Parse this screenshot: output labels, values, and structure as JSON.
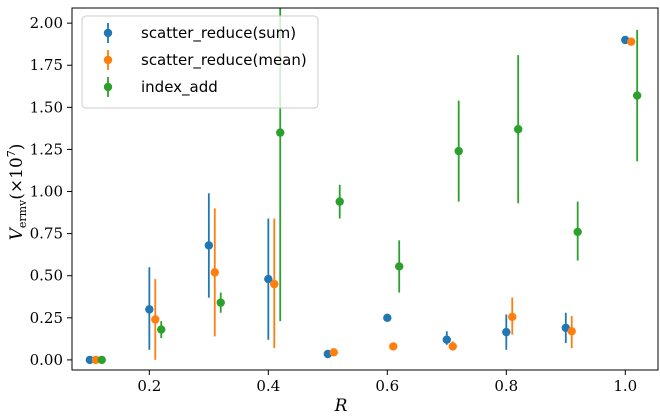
{
  "chart_data": {
    "type": "scatter",
    "xlabel": "R",
    "ylabel": {
      "main": "V",
      "sub": "ermv",
      "suffix": "(×10",
      "exp": "7",
      "close": ")"
    },
    "xlim": [
      0.07,
      1.055
    ],
    "ylim": [
      -0.06,
      2.09
    ],
    "x_ticks": [
      0.2,
      0.4,
      0.6,
      0.8,
      1.0
    ],
    "x_tick_labels": [
      "0.2",
      "0.4",
      "0.6",
      "0.8",
      "1.0"
    ],
    "y_ticks": [
      0.0,
      0.25,
      0.5,
      0.75,
      1.0,
      1.25,
      1.5,
      1.75,
      2.0
    ],
    "y_tick_labels": [
      "0.00",
      "0.25",
      "0.50",
      "0.75",
      "1.00",
      "1.25",
      "1.50",
      "1.75",
      "2.00"
    ],
    "grid": false,
    "legend_position": "top-left",
    "series": [
      {
        "name": "scatter_reduce(sum)",
        "color": "#1f77b4",
        "x": [
          0.1,
          0.2,
          0.3,
          0.4,
          0.5,
          0.6,
          0.7,
          0.8,
          0.9,
          1.0
        ],
        "y": [
          0.0,
          0.3,
          0.68,
          0.48,
          0.035,
          0.25,
          0.12,
          0.165,
          0.19,
          1.9
        ],
        "err_low": [
          0.0,
          0.06,
          0.37,
          0.12,
          0.03,
          0.25,
          0.09,
          0.06,
          0.1,
          1.9
        ],
        "err_high": [
          0.0,
          0.55,
          0.99,
          0.84,
          0.04,
          0.25,
          0.17,
          0.27,
          0.28,
          1.9
        ]
      },
      {
        "name": "scatter_reduce(mean)",
        "color": "#ff7f0e",
        "x": [
          0.11,
          0.21,
          0.31,
          0.41,
          0.51,
          0.61,
          0.71,
          0.81,
          0.91,
          1.01
        ],
        "y": [
          0.0,
          0.24,
          0.52,
          0.45,
          0.045,
          0.08,
          0.08,
          0.255,
          0.17,
          1.89
        ],
        "err_low": [
          0.0,
          0.0,
          0.14,
          0.07,
          0.04,
          0.08,
          0.06,
          0.15,
          0.07,
          1.89
        ],
        "err_high": [
          0.0,
          0.48,
          0.9,
          0.84,
          0.05,
          0.08,
          0.11,
          0.37,
          0.26,
          1.89
        ]
      },
      {
        "name": "index_add",
        "color": "#2ca02c",
        "x": [
          0.12,
          0.22,
          0.32,
          0.42,
          0.52,
          0.62,
          0.72,
          0.82,
          0.92,
          1.02
        ],
        "y": [
          0.0,
          0.18,
          0.34,
          1.35,
          0.94,
          0.555,
          1.24,
          1.37,
          0.76,
          1.57
        ],
        "err_low": [
          0.0,
          0.13,
          0.28,
          0.23,
          0.84,
          0.4,
          0.94,
          0.93,
          0.59,
          1.18
        ],
        "err_high": [
          0.0,
          0.23,
          0.4,
          2.1,
          1.04,
          0.71,
          1.54,
          1.81,
          0.94,
          1.96
        ]
      }
    ]
  }
}
